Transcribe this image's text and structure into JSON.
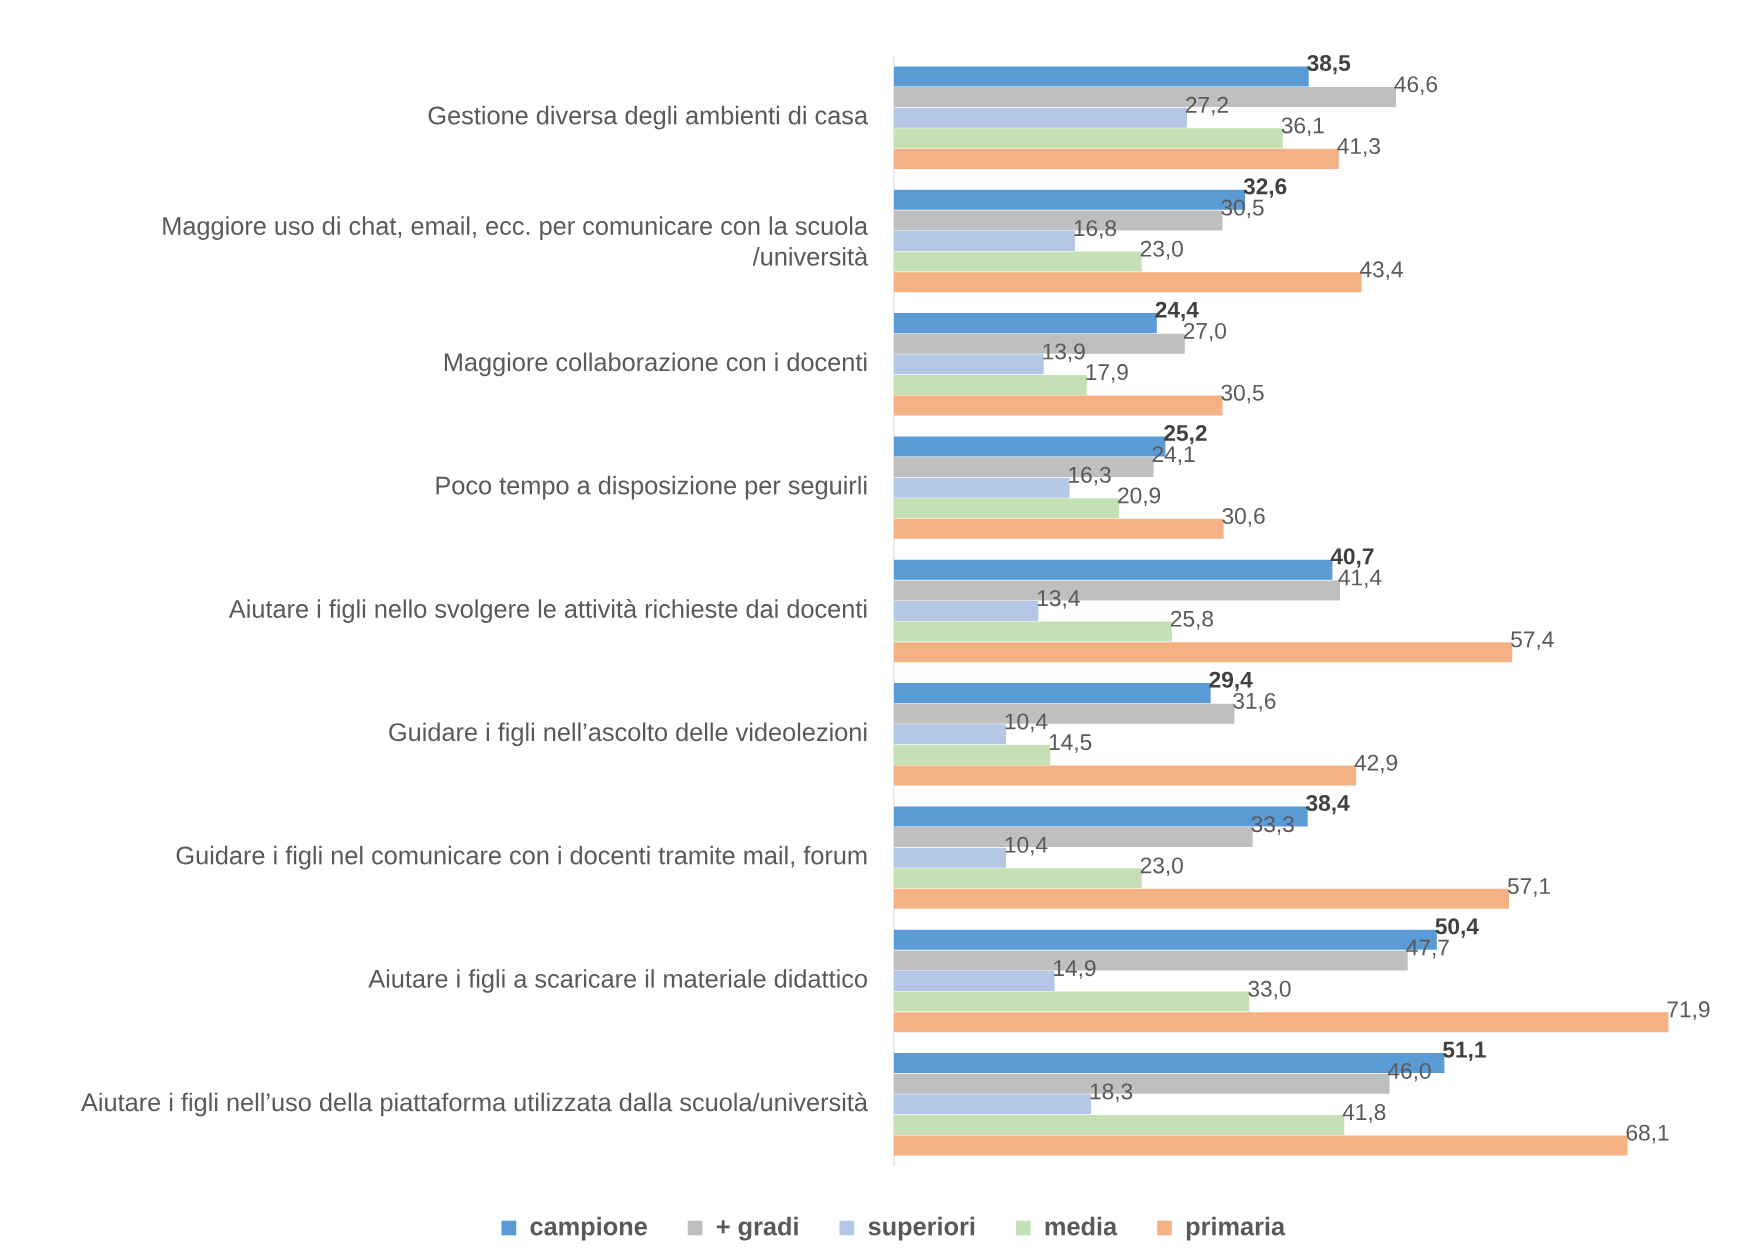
{
  "chart_data": {
    "type": "bar",
    "orientation": "horizontal",
    "categories": [
      "Gestione diversa degli ambienti di casa",
      "Maggiore uso di chat, email, ecc. per comunicare con la scuola /università",
      "Maggiore collaborazione con i docenti",
      "Poco tempo a disposizione per seguirli",
      "Aiutare i figli nello svolgere le attività richieste dai docenti",
      "Guidare i figli nell’ascolto delle videolezioni",
      "Guidare i figli nel comunicare con i docenti tramite mail, forum",
      "Aiutare i figli a scaricare il materiale didattico",
      "Aiutare i figli nell’uso della piattaforma utilizzata dalla scuola/università"
    ],
    "series": [
      {
        "name": "campione",
        "color": "#5b9bd5",
        "values": [
          38.5,
          32.6,
          24.4,
          25.2,
          40.7,
          29.4,
          38.4,
          50.4,
          51.1
        ],
        "value_labels": [
          "38,5",
          "32,6",
          "24,4",
          "25,2",
          "40,7",
          "29,4",
          "38,4",
          "50,4",
          "51,1"
        ]
      },
      {
        "name": "+ gradi",
        "color": "#bfbfbf",
        "values": [
          46.6,
          30.5,
          27.0,
          24.1,
          41.4,
          31.6,
          33.3,
          47.7,
          46.0
        ],
        "value_labels": [
          "46,6",
          "30,5",
          "27,0",
          "24,1",
          "41,4",
          "31,6",
          "33,3",
          "47,7",
          "46,0"
        ]
      },
      {
        "name": "superiori",
        "color": "#b4c7e7",
        "values": [
          27.2,
          16.8,
          13.9,
          16.3,
          13.4,
          10.4,
          10.4,
          14.9,
          18.3
        ],
        "value_labels": [
          "27,2",
          "16,8",
          "13,9",
          "16,3",
          "13,4",
          "10,4",
          "10,4",
          "14,9",
          "18,3"
        ]
      },
      {
        "name": "media",
        "color": "#c5e0b4",
        "values": [
          36.1,
          23.0,
          17.9,
          20.9,
          25.8,
          14.5,
          23.0,
          33.0,
          41.8
        ],
        "value_labels": [
          "36,1",
          "23,0",
          "17,9",
          "20,9",
          "25,8",
          "14,5",
          "23,0",
          "33,0",
          "41,8"
        ]
      },
      {
        "name": "primaria",
        "color": "#f4b183",
        "values": [
          41.3,
          43.4,
          30.5,
          30.6,
          57.4,
          42.9,
          57.1,
          71.9,
          68.1
        ],
        "value_labels": [
          "41,3",
          "43,4",
          "30,5",
          "30,6",
          "57,4",
          "42,9",
          "57,1",
          "71,9",
          "68,1"
        ]
      }
    ],
    "tick_labels": "y",
    "legend": "bottom"
  }
}
